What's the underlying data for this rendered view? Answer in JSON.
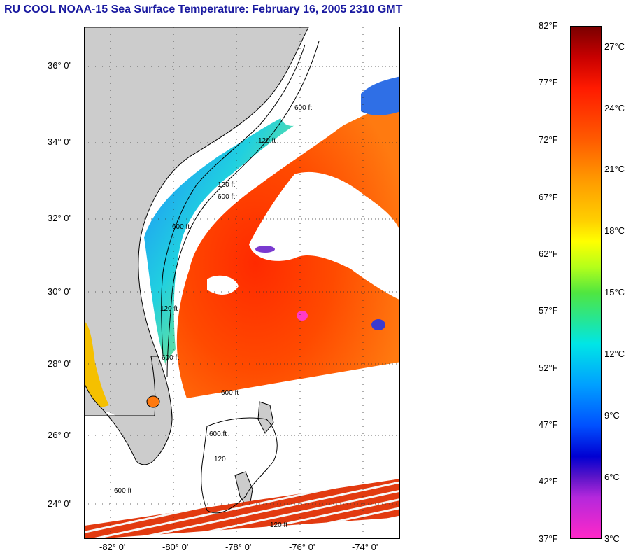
{
  "title": "RU COOL  NOAA-15  Sea Surface Temperature:  February 16, 2005 2310 GMT",
  "map": {
    "lat_ticks": [
      "36° 0'",
      "34° 0'",
      "32° 0'",
      "30° 0'",
      "28° 0'",
      "26° 0'",
      "24° 0'"
    ],
    "lon_ticks": [
      "-82° 0'",
      "-80° 0'",
      "-78° 0'",
      "-76° 0'",
      "-74° 0'"
    ],
    "contour_labels": [
      "600 ft",
      "120 ft",
      "600 ft",
      "120 ft",
      "600 ft",
      "120 ft",
      "600 ft",
      "600 ft",
      "120",
      "600 ft",
      "600 ft",
      "120 ft"
    ],
    "land_color": "#cccccc",
    "cloud_color": "#ffffff"
  },
  "colorbar": {
    "fahrenheit": [
      "82°F",
      "77°F",
      "72°F",
      "67°F",
      "62°F",
      "57°F",
      "52°F",
      "47°F",
      "42°F",
      "37°F"
    ],
    "celsius": [
      "27°C",
      "24°C",
      "21°C",
      "18°C",
      "15°C",
      "12°C",
      "9°C",
      "6°C",
      "3°C"
    ]
  }
}
